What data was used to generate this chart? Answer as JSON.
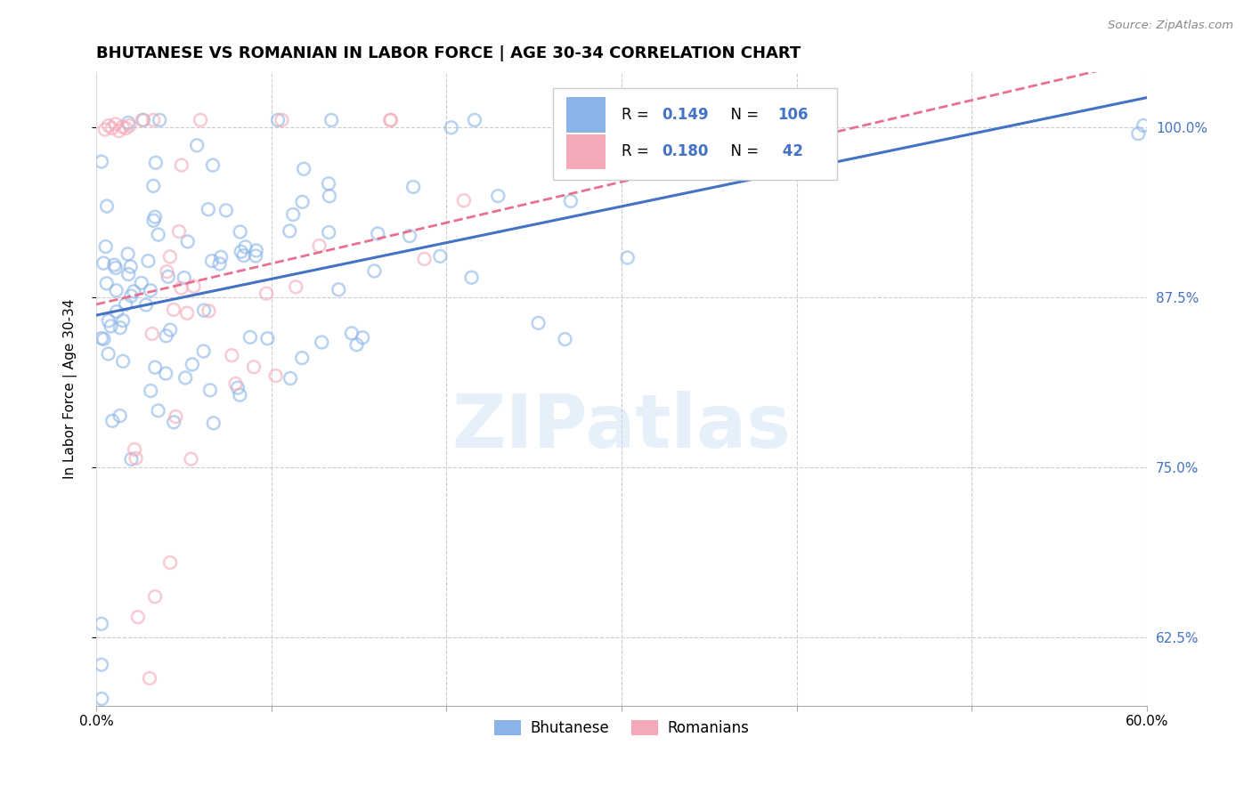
{
  "title": "BHUTANESE VS ROMANIAN IN LABOR FORCE | AGE 30-34 CORRELATION CHART",
  "source_text": "Source: ZipAtlas.com",
  "ylabel": "In Labor Force | Age 30-34",
  "x_min": 0.0,
  "x_max": 0.6,
  "y_min": 0.575,
  "y_max": 1.04,
  "y_ticks": [
    0.625,
    0.75,
    0.875,
    1.0
  ],
  "y_tick_labels": [
    "62.5%",
    "75.0%",
    "87.5%",
    "100.0%"
  ],
  "x_ticks": [
    0.0,
    0.1,
    0.2,
    0.3,
    0.4,
    0.5,
    0.6
  ],
  "x_tick_labels": [
    "0.0%",
    "",
    "",
    "",
    "",
    "",
    "60.0%"
  ],
  "bhutanese_color": "#8ab4e8",
  "bhutanese_edge": "#7aaad8",
  "romanian_color": "#f4a8b8",
  "romanian_edge": "#e898a8",
  "trend_blue": "#4472c4",
  "trend_pink": "#e87090",
  "bhutanese_R": "0.149",
  "bhutanese_N": "106",
  "romanian_R": "0.180",
  "romanian_N": " 42",
  "legend_color": "#4472c4",
  "watermark": "ZIPatlas",
  "title_fontsize": 13,
  "marker_size": 100,
  "marker_alpha": 0.6
}
